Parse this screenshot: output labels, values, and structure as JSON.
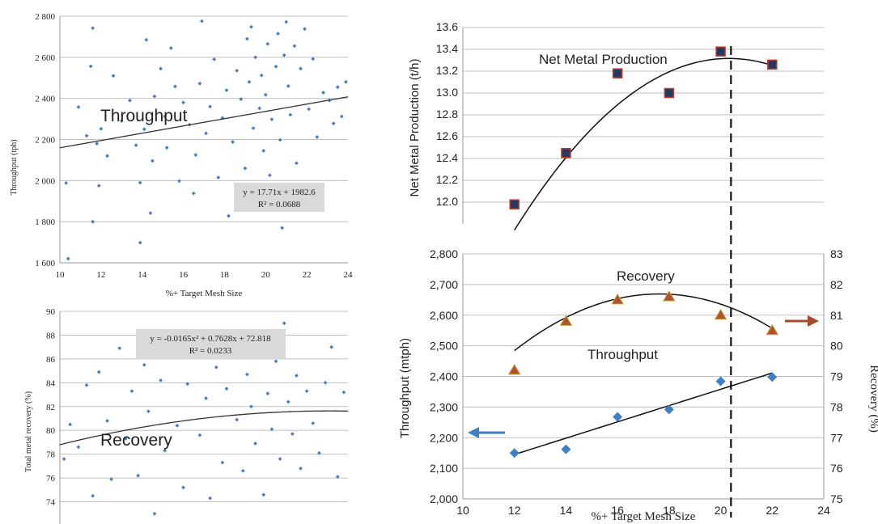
{
  "chart_data": [
    {
      "type": "scatter",
      "id": "throughput-scatter",
      "ylabel": "Throughput (tph)",
      "xlabel": "%+ Target Mesh Size",
      "xlim": [
        10,
        24
      ],
      "ylim": [
        1600,
        2800
      ],
      "xticks": [
        10,
        12,
        14,
        16,
        18,
        20,
        22,
        24
      ],
      "yticks": [
        1600,
        1800,
        2000,
        2200,
        2400,
        2600,
        2800
      ],
      "ytick_labels": [
        "1 600",
        "1 800",
        "2 000",
        "2 200",
        "2 400",
        "2 600",
        "2 800"
      ],
      "grid": true,
      "annotation": "Throughput",
      "trendline": {
        "type": "linear",
        "slope": 17.71,
        "intercept": 1982.6
      },
      "equation": "y = 17.71x + 1982.6",
      "r2": "R² = 0.0688",
      "series": [
        {
          "points": [
            [
              10.3,
              1988
            ],
            [
              10.4,
              1620
            ],
            [
              10.9,
              2358
            ],
            [
              11.3,
              2218
            ],
            [
              11.5,
              2556
            ],
            [
              11.6,
              1800
            ],
            [
              11.6,
              2742
            ],
            [
              11.8,
              2180
            ],
            [
              11.9,
              1975
            ],
            [
              12.0,
              2252
            ],
            [
              12.3,
              2120
            ],
            [
              12.6,
              2510
            ],
            [
              13.0,
              2290
            ],
            [
              13.4,
              2390
            ],
            [
              13.7,
              2172
            ],
            [
              13.9,
              1990
            ],
            [
              13.9,
              1698
            ],
            [
              14.1,
              2250
            ],
            [
              14.2,
              2685
            ],
            [
              14.4,
              1842
            ],
            [
              14.5,
              2096
            ],
            [
              14.6,
              2410
            ],
            [
              14.9,
              2545
            ],
            [
              15.1,
              2312
            ],
            [
              15.2,
              2160
            ],
            [
              15.4,
              2645
            ],
            [
              15.6,
              2458
            ],
            [
              15.8,
              1998
            ],
            [
              16.0,
              2380
            ],
            [
              16.3,
              2272
            ],
            [
              16.5,
              1938
            ],
            [
              16.6,
              2125
            ],
            [
              16.8,
              2472
            ],
            [
              16.9,
              2776
            ],
            [
              17.1,
              2230
            ],
            [
              17.3,
              2360
            ],
            [
              17.5,
              2590
            ],
            [
              17.7,
              2015
            ],
            [
              17.9,
              2305
            ],
            [
              18.1,
              2440
            ],
            [
              18.2,
              1828
            ],
            [
              18.4,
              2188
            ],
            [
              18.6,
              2535
            ],
            [
              18.8,
              2396
            ],
            [
              19.0,
              2060
            ],
            [
              19.1,
              2690
            ],
            [
              19.2,
              2480
            ],
            [
              19.3,
              2748
            ],
            [
              19.4,
              2255
            ],
            [
              19.5,
              2600
            ],
            [
              19.6,
              1900
            ],
            [
              19.7,
              2352
            ],
            [
              19.8,
              2512
            ],
            [
              19.9,
              2145
            ],
            [
              20.0,
              2418
            ],
            [
              20.1,
              2665
            ],
            [
              20.2,
              2026
            ],
            [
              20.3,
              2298
            ],
            [
              20.5,
              2555
            ],
            [
              20.6,
              2715
            ],
            [
              20.7,
              2198
            ],
            [
              20.8,
              1770
            ],
            [
              20.9,
              2610
            ],
            [
              21.0,
              2772
            ],
            [
              21.1,
              2460
            ],
            [
              21.2,
              2320
            ],
            [
              21.4,
              2655
            ],
            [
              21.5,
              2085
            ],
            [
              21.7,
              2545
            ],
            [
              21.9,
              2738
            ],
            [
              22.1,
              2348
            ],
            [
              22.3,
              2592
            ],
            [
              22.5,
              2212
            ],
            [
              22.8,
              2428
            ],
            [
              23.1,
              2390
            ],
            [
              23.3,
              2278
            ],
            [
              23.5,
              2455
            ],
            [
              23.7,
              2312
            ],
            [
              23.9,
              2480
            ]
          ]
        }
      ]
    },
    {
      "type": "scatter",
      "id": "recovery-scatter",
      "ylabel": "Total metal recovery (%)",
      "xlim": [
        10,
        24
      ],
      "ylim": [
        72,
        90
      ],
      "yticks": [
        74,
        76,
        78,
        80,
        82,
        84,
        86,
        88,
        90
      ],
      "ytick_labels": [
        "74",
        "76",
        "78",
        "80",
        "82",
        "84",
        "86",
        "88",
        "90"
      ],
      "grid": true,
      "annotation": "Recovery",
      "trendline": {
        "type": "poly2",
        "a": -0.0165,
        "b": 0.7628,
        "c": 72.818
      },
      "equation": "y = -0.0165x² + 0.7628x + 72.818",
      "r2": "R² = 0.0233",
      "series": [
        {
          "points": [
            [
              10.2,
              77.6
            ],
            [
              10.5,
              80.5
            ],
            [
              10.9,
              78.6
            ],
            [
              11.3,
              83.8
            ],
            [
              11.6,
              74.5
            ],
            [
              11.9,
              84.9
            ],
            [
              12.3,
              80.8
            ],
            [
              12.5,
              75.9
            ],
            [
              12.9,
              86.9
            ],
            [
              13.2,
              79.3
            ],
            [
              13.5,
              83.3
            ],
            [
              13.8,
              76.2
            ],
            [
              14.1,
              85.5
            ],
            [
              14.3,
              81.6
            ],
            [
              14.6,
              73.0
            ],
            [
              14.9,
              84.2
            ],
            [
              15.1,
              78.3
            ],
            [
              15.4,
              86.6
            ],
            [
              15.7,
              80.4
            ],
            [
              16.0,
              75.2
            ],
            [
              16.2,
              83.9
            ],
            [
              16.5,
              87.6
            ],
            [
              16.8,
              79.6
            ],
            [
              17.1,
              82.7
            ],
            [
              17.3,
              74.3
            ],
            [
              17.6,
              85.3
            ],
            [
              17.9,
              77.3
            ],
            [
              18.1,
              83.5
            ],
            [
              18.4,
              88.2
            ],
            [
              18.6,
              80.9
            ],
            [
              18.9,
              76.6
            ],
            [
              19.1,
              84.7
            ],
            [
              19.3,
              82.0
            ],
            [
              19.5,
              78.9
            ],
            [
              19.7,
              86.3
            ],
            [
              19.9,
              74.6
            ],
            [
              20.1,
              83.1
            ],
            [
              20.3,
              80.1
            ],
            [
              20.5,
              85.8
            ],
            [
              20.7,
              77.6
            ],
            [
              20.9,
              89.0
            ],
            [
              21.1,
              82.4
            ],
            [
              21.3,
              79.7
            ],
            [
              21.5,
              84.6
            ],
            [
              21.7,
              76.8
            ],
            [
              22.0,
              83.3
            ],
            [
              22.3,
              80.6
            ],
            [
              22.6,
              78.1
            ],
            [
              22.9,
              84.0
            ],
            [
              23.2,
              87.0
            ],
            [
              23.5,
              76.1
            ],
            [
              23.8,
              83.2
            ]
          ]
        }
      ]
    },
    {
      "type": "scatter",
      "id": "net-metal-production",
      "ylabel": "Net Metal Production (t/h)",
      "xlim": [
        10,
        24
      ],
      "ylim": [
        11.8,
        13.6
      ],
      "yticks": [
        12.0,
        12.2,
        12.4,
        12.6,
        12.8,
        13.0,
        13.2,
        13.4,
        13.6
      ],
      "ytick_labels": [
        "12.0",
        "12.2",
        "12.4",
        "12.6",
        "12.8",
        "13.0",
        "13.2",
        "13.4",
        "13.6"
      ],
      "grid": true,
      "annotation": "Net Metal Production",
      "trendline": {
        "type": "poly2",
        "a": -0.0227,
        "b": 0.9227,
        "c": 3.94
      },
      "series": [
        {
          "points": [
            [
              12,
              11.98
            ],
            [
              14,
              12.45
            ],
            [
              16,
              13.18
            ],
            [
              18,
              13.0
            ],
            [
              20,
              13.38
            ],
            [
              22,
              13.26
            ]
          ],
          "color": "#243a5e"
        }
      ]
    },
    {
      "type": "line",
      "id": "throughput-recovery",
      "xlabel": "%+ Target Mesh Size",
      "ylabel": "Throughput (mtph)",
      "y2label": "Recovery (%)",
      "xlim": [
        10,
        24
      ],
      "xticks": [
        10,
        12,
        14,
        16,
        18,
        20,
        22,
        24
      ],
      "ylim": [
        2000,
        2800
      ],
      "yticks": [
        2000,
        2100,
        2200,
        2300,
        2400,
        2500,
        2600,
        2700,
        2800
      ],
      "ytick_labels": [
        "2,000",
        "2,100",
        "2,200",
        "2,300",
        "2,400",
        "2,500",
        "2,600",
        "2,700",
        "2,800"
      ],
      "y2lim": [
        75,
        83
      ],
      "y2ticks": [
        75,
        76,
        77,
        78,
        79,
        80,
        81,
        82,
        83
      ],
      "grid": true,
      "vline_x": 20.4,
      "series": [
        {
          "name": "Throughput",
          "axis": "left",
          "marker": "diamond",
          "color": "#3f7fc4",
          "x": [
            12,
            14,
            16,
            18,
            20,
            22
          ],
          "values": [
            2150,
            2162,
            2268,
            2292,
            2384,
            2398
          ],
          "trend": {
            "type": "linear",
            "slope": 26.6,
            "intercept": 1826
          }
        },
        {
          "name": "Recovery",
          "axis": "right",
          "marker": "triangle",
          "color": "#b0522f",
          "x": [
            12,
            14,
            16,
            18,
            20,
            22
          ],
          "values": [
            79.2,
            80.8,
            81.5,
            81.6,
            81.0,
            80.5
          ],
          "trend": {
            "type": "poly2",
            "a": -0.0586,
            "b": 2.065,
            "c": 63.5
          }
        }
      ]
    }
  ]
}
